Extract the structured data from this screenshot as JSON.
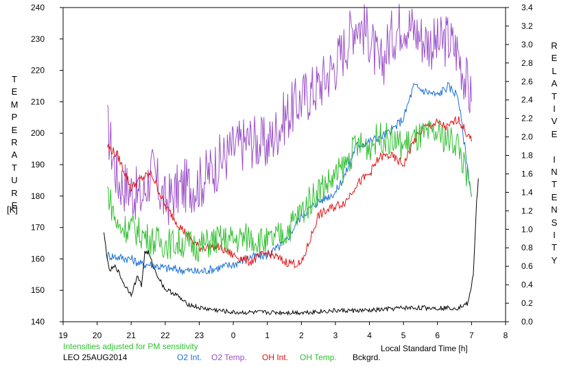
{
  "chart_data": {
    "type": "line",
    "left_axis": {
      "label": "TEMPERATURE",
      "unit": "[K]",
      "range": [
        140,
        240
      ],
      "ticks": [
        140,
        150,
        160,
        170,
        180,
        190,
        200,
        210,
        220,
        230,
        240
      ]
    },
    "right_axis": {
      "label": "RELATIVE INTENSITY",
      "range": [
        0.0,
        3.4
      ],
      "ticks": [
        "0.0",
        "0.2",
        "0.4",
        "0.6",
        "0.8",
        "1.0",
        "1.2",
        "1.4",
        "1.6",
        "1.8",
        "2.0",
        "2.2",
        "2.4",
        "2.6",
        "2.8",
        "3.0",
        "3.2",
        "3.4"
      ]
    },
    "x_axis": {
      "label": "Local Standard Time [h]",
      "range": [
        19,
        32
      ],
      "tick_labels": [
        "19",
        "20",
        "21",
        "22",
        "23",
        "0",
        "1",
        "2",
        "3",
        "4",
        "5",
        "6",
        "7",
        "8"
      ]
    },
    "notes": {
      "adjusted": "Intensities adjusted for PM sensitivity",
      "station_date": "LEO 25AUG2014"
    },
    "legend": [
      {
        "name": "O2 Int.",
        "color": "#1a6fd4"
      },
      {
        "name": "O2 Temp.",
        "color": "#9b4fc9"
      },
      {
        "name": "OH Int.",
        "color": "#e01010"
      },
      {
        "name": "OH Temp.",
        "color": "#2fbf2f"
      },
      {
        "name": "Bckgrd.",
        "color": "#000000"
      }
    ],
    "series": [
      {
        "name": "O2 Temp.",
        "axis": "left",
        "color": "#9b4fc9",
        "x": [
          20.3,
          20.6,
          21.0,
          21.3,
          21.6,
          22.0,
          22.5,
          23.0,
          23.5,
          24.0,
          24.5,
          25.0,
          25.5,
          26.0,
          26.5,
          27.0,
          27.3,
          27.6,
          28.0,
          28.3,
          28.6,
          29.0,
          29.3,
          29.6,
          30.0,
          30.3,
          30.6,
          31.0
        ],
        "y": [
          202,
          185,
          182,
          179,
          188,
          178,
          183,
          184,
          190,
          195,
          198,
          196,
          205,
          211,
          215,
          222,
          228,
          236,
          231,
          220,
          230,
          236,
          233,
          230,
          228,
          230,
          226,
          210
        ]
      },
      {
        "name": "O2 Int.",
        "axis": "right",
        "color": "#1a6fd4",
        "x": [
          20.3,
          20.6,
          21.0,
          21.3,
          21.6,
          22.0,
          22.5,
          23.0,
          23.5,
          24.0,
          24.5,
          25.0,
          25.5,
          26.0,
          26.5,
          27.0,
          27.3,
          27.6,
          28.0,
          28.3,
          28.6,
          29.0,
          29.3,
          29.6,
          30.0,
          30.3,
          30.6,
          31.0
        ],
        "y": [
          0.72,
          0.7,
          0.68,
          0.62,
          0.62,
          0.58,
          0.56,
          0.54,
          0.58,
          0.62,
          0.7,
          0.72,
          0.85,
          1.15,
          1.3,
          1.4,
          1.6,
          1.9,
          1.95,
          2.0,
          2.05,
          2.2,
          2.55,
          2.5,
          2.45,
          2.55,
          2.45,
          1.35
        ]
      },
      {
        "name": "OH Int.",
        "axis": "right",
        "color": "#e01010",
        "x": [
          20.3,
          20.6,
          21.0,
          21.3,
          21.6,
          22.0,
          22.5,
          23.0,
          23.5,
          24.0,
          24.5,
          25.0,
          25.5,
          26.0,
          26.5,
          27.0,
          27.3,
          27.6,
          28.0,
          28.3,
          28.6,
          29.0,
          29.3,
          29.6,
          30.0,
          30.3,
          30.6,
          31.0
        ],
        "y": [
          1.9,
          1.8,
          1.45,
          1.55,
          1.6,
          1.25,
          1.0,
          0.8,
          0.82,
          0.72,
          0.65,
          0.75,
          0.65,
          0.62,
          1.15,
          1.25,
          1.3,
          1.48,
          1.6,
          1.78,
          1.8,
          1.7,
          1.95,
          2.1,
          2.15,
          2.1,
          2.2,
          1.95
        ]
      },
      {
        "name": "OH Temp.",
        "axis": "left",
        "color": "#2fbf2f",
        "x": [
          20.3,
          20.6,
          21.0,
          21.3,
          21.6,
          22.0,
          22.5,
          23.0,
          23.5,
          24.0,
          24.5,
          25.0,
          25.5,
          26.0,
          26.5,
          27.0,
          27.3,
          27.6,
          28.0,
          28.3,
          28.6,
          29.0,
          29.3,
          29.6,
          30.0,
          30.3,
          30.6,
          31.0
        ],
        "y": [
          182,
          170,
          170,
          168,
          166,
          165,
          165,
          164,
          166,
          166,
          167,
          165,
          168,
          175,
          182,
          186,
          190,
          196,
          196,
          199,
          198,
          196,
          198,
          199,
          200,
          198,
          197,
          180
        ]
      },
      {
        "name": "Bckgrd.",
        "axis": "right",
        "color": "#000000",
        "x": [
          20.2,
          20.35,
          20.55,
          20.8,
          21.0,
          21.2,
          21.3,
          21.4,
          21.5,
          21.7,
          22.0,
          22.3,
          22.6,
          23.0,
          24.0,
          25.0,
          26.0,
          27.0,
          28.0,
          29.0,
          30.0,
          30.6,
          30.9,
          31.05,
          31.15,
          31.2
        ],
        "y": [
          0.95,
          0.55,
          0.6,
          0.4,
          0.3,
          0.5,
          0.38,
          0.75,
          0.75,
          0.55,
          0.35,
          0.3,
          0.2,
          0.15,
          0.1,
          0.1,
          0.1,
          0.12,
          0.12,
          0.15,
          0.15,
          0.15,
          0.2,
          0.5,
          1.3,
          1.55
        ]
      }
    ]
  }
}
